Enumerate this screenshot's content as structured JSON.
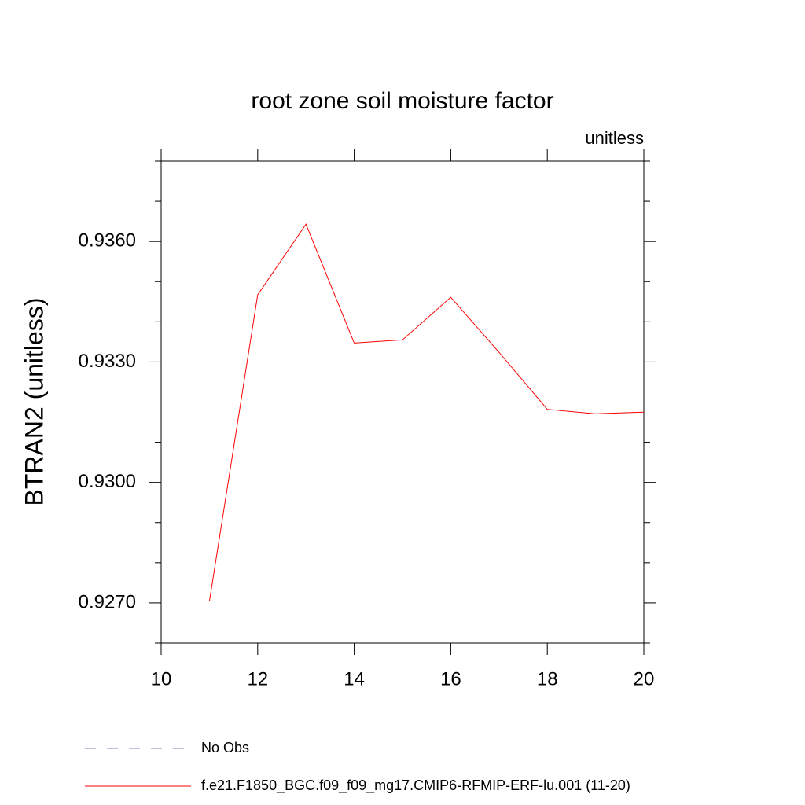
{
  "chart_data": {
    "type": "line",
    "title": "root zone soil moisture factor",
    "subtitle": "unitless",
    "y_label": "BTRAN2  (unitless)",
    "x": [
      11,
      12,
      13,
      14,
      15,
      16,
      17,
      18,
      19,
      20
    ],
    "series": [
      {
        "name": "No Obs",
        "color": "#8080c0",
        "dashed": true,
        "values": [
          null,
          null,
          null,
          null,
          null,
          null,
          null,
          null,
          null,
          null
        ]
      },
      {
        "name": "f.e21.F1850_BGC.f09_f09_mg17.CMIP6-RFMIP-ERF-lu.001 (11-20)",
        "color": "#ff0000",
        "dashed": false,
        "values": [
          0.92704,
          0.93467,
          0.93643,
          0.93347,
          0.93355,
          0.93461,
          0.93324,
          0.93182,
          0.93171,
          0.93175
        ]
      }
    ],
    "xlim": [
      10,
      20
    ],
    "xticks": [
      10,
      12,
      14,
      16,
      18,
      20
    ],
    "ylim": [
      0.926,
      0.938
    ],
    "yticks": [
      {
        "value": 0.927,
        "label": "0.9270"
      },
      {
        "value": 0.93,
        "label": "0.9300"
      },
      {
        "value": 0.933,
        "label": "0.9330"
      },
      {
        "value": 0.936,
        "label": "0.9360"
      }
    ],
    "yminorticks": [
      0.926,
      0.928,
      0.929,
      0.931,
      0.932,
      0.934,
      0.935,
      0.937,
      0.938
    ],
    "grid": false
  }
}
